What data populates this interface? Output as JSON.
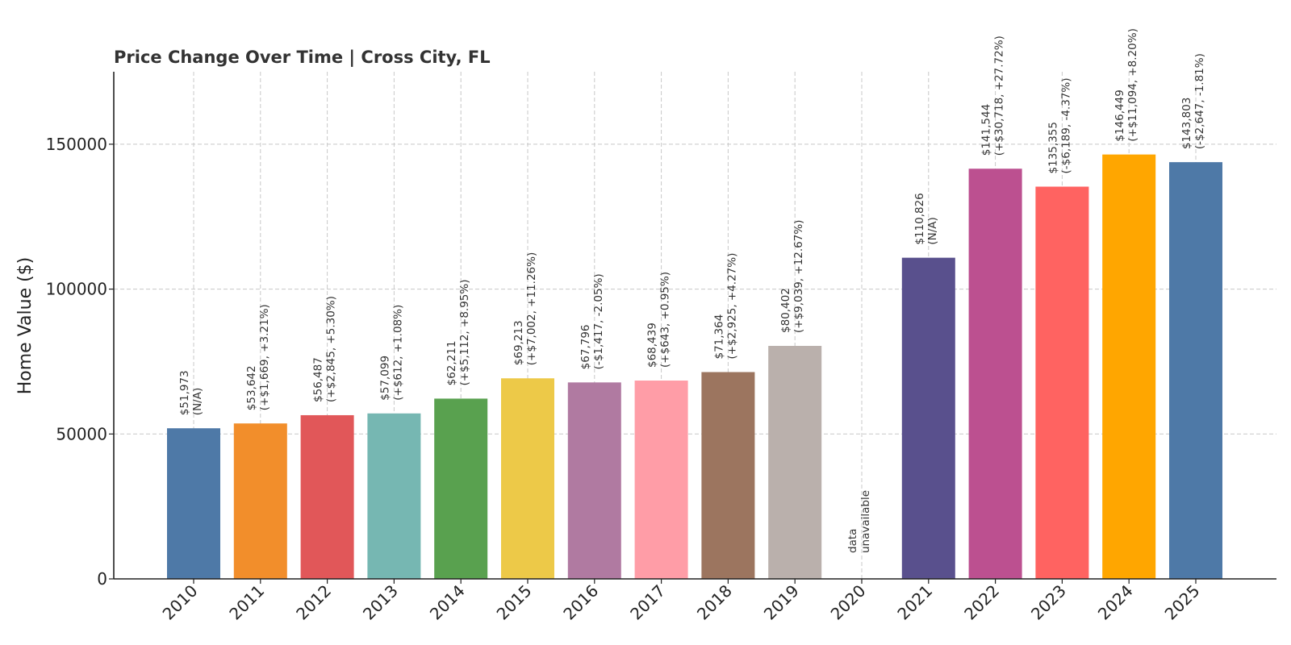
{
  "chart_data": {
    "type": "bar",
    "title": "Price Change Over Time | Cross City, FL",
    "xlabel": "",
    "ylabel": "Home Value ($)",
    "ylim": [
      0,
      175000
    ],
    "yticks": [
      0,
      50000,
      100000,
      150000
    ],
    "ytick_labels": [
      "0",
      "50000",
      "100000",
      "150000"
    ],
    "grid": true,
    "categories": [
      "2010",
      "2011",
      "2012",
      "2013",
      "2014",
      "2015",
      "2016",
      "2017",
      "2018",
      "2019",
      "2020",
      "2021",
      "2022",
      "2023",
      "2024",
      "2025"
    ],
    "values": [
      51973,
      53642,
      56487,
      57099,
      62211,
      69213,
      67796,
      68439,
      71364,
      80402,
      null,
      110826,
      141544,
      135355,
      146449,
      143803
    ],
    "bar_colors": [
      "#4e79a7",
      "#f28e2b",
      "#e15759",
      "#76b7b2",
      "#59a14f",
      "#edc948",
      "#b07aa1",
      "#ff9da7",
      "#9c755f",
      "#bab0ac",
      "#ffffff",
      "#59508d",
      "#bc5090",
      "#ff6361",
      "#ffa600",
      "#4e79a7"
    ],
    "labels": [
      [
        "$51,973",
        "(N/A)"
      ],
      [
        "$53,642",
        "(+$1,669, +3.21%)"
      ],
      [
        "$56,487",
        "(+$2,845, +5.30%)"
      ],
      [
        "$57,099",
        "(+$612, +1.08%)"
      ],
      [
        "$62,211",
        "(+$5,112, +8.95%)"
      ],
      [
        "$69,213",
        "(+$7,002, +11.26%)"
      ],
      [
        "$67,796",
        "(-$1,417, -2.05%)"
      ],
      [
        "$68,439",
        "(+$643, +0.95%)"
      ],
      [
        "$71,364",
        "(+$2,925, +4.27%)"
      ],
      [
        "$80,402",
        "(+$9,039, +12.67%)"
      ],
      [
        "data",
        "unavailable"
      ],
      [
        "$110,826",
        "(N/A)"
      ],
      [
        "$141,544",
        "(+$30,718, +27.72%)"
      ],
      [
        "$135,355",
        "(-$6,189, -4.37%)"
      ],
      [
        "$146,449",
        "(+$11,094, +8.20%)"
      ],
      [
        "$143,803",
        "(-$2,647, -1.81%)"
      ]
    ]
  }
}
